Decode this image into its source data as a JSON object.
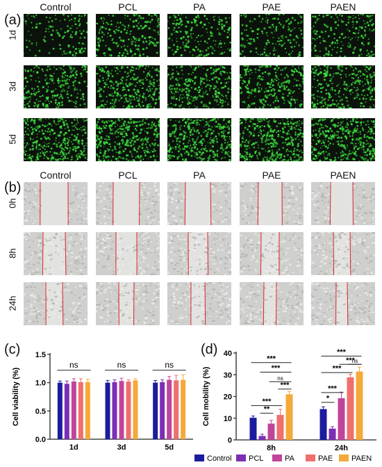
{
  "panel_a": {
    "letter": "(a)",
    "columns": [
      "Control",
      "PCL",
      "PA",
      "PAE",
      "PAEN"
    ],
    "rows": [
      "1d",
      "3d",
      "5d"
    ],
    "density": [
      [
        0.35,
        0.55,
        0.5,
        0.45,
        0.5
      ],
      [
        0.65,
        0.8,
        0.75,
        0.7,
        0.75
      ],
      [
        0.9,
        0.95,
        0.95,
        0.95,
        0.95
      ]
    ]
  },
  "panel_b": {
    "letter": "(b)",
    "columns": [
      "Control",
      "PCL",
      "PA",
      "PAE",
      "PAEN"
    ],
    "rows": [
      "0h",
      "8h",
      "24h"
    ]
  },
  "panel_c": {
    "letter": "(c)"
  },
  "panel_d": {
    "letter": "(d)"
  },
  "legend": [
    "Control",
    "PCL",
    "PA",
    "PAE",
    "PAEN"
  ],
  "colors": {
    "Control": "#1c1c9e",
    "PCL": "#7b2fb5",
    "PA": "#c0449a",
    "PAE": "#ef6f6c",
    "PAEN": "#f5a93a",
    "green": "#3ddc3d",
    "scratch": "#d9262c"
  },
  "chart_data": [
    {
      "type": "bar",
      "ylabel": "Cell viability (%)",
      "ylim": [
        0,
        1.5
      ],
      "yticks": [
        "0.0",
        "0.5",
        "1.0",
        "1.5"
      ],
      "categories": [
        "1d",
        "3d",
        "5d"
      ],
      "series": [
        {
          "name": "Control",
          "values": [
            1.0,
            1.0,
            1.0
          ],
          "err": [
            0.03,
            0.04,
            0.04
          ]
        },
        {
          "name": "PCL",
          "values": [
            0.98,
            1.01,
            1.01
          ],
          "err": [
            0.05,
            0.04,
            0.04
          ]
        },
        {
          "name": "PA",
          "values": [
            1.02,
            1.03,
            1.05
          ],
          "err": [
            0.05,
            0.05,
            0.06
          ]
        },
        {
          "name": "PAE",
          "values": [
            1.01,
            1.02,
            1.04
          ],
          "err": [
            0.06,
            0.03,
            0.09
          ]
        },
        {
          "name": "PAEN",
          "values": [
            1.01,
            1.04,
            1.05
          ],
          "err": [
            0.05,
            0.03,
            0.09
          ]
        }
      ],
      "annotations": [
        "ns",
        "ns",
        "ns"
      ]
    },
    {
      "type": "bar",
      "ylabel": "Cell mobility (%)",
      "ylim": [
        0,
        40
      ],
      "yticks": [
        "0",
        "10",
        "20",
        "30",
        "40"
      ],
      "categories": [
        "8h",
        "24h"
      ],
      "series": [
        {
          "name": "Control",
          "values": [
            10.2,
            14.2
          ],
          "err": [
            0.8,
            1.0
          ]
        },
        {
          "name": "PCL",
          "values": [
            1.8,
            5.2
          ],
          "err": [
            0.8,
            0.9
          ]
        },
        {
          "name": "PA",
          "values": [
            7.5,
            19.2
          ],
          "err": [
            1.5,
            2.8
          ]
        },
        {
          "name": "PAE",
          "values": [
            11.5,
            28.8
          ],
          "err": [
            2.6,
            1.4
          ]
        },
        {
          "name": "PAEN",
          "values": [
            21.0,
            31.5
          ],
          "err": [
            1.3,
            2.0
          ]
        }
      ],
      "significance": [
        {
          "group": 0,
          "from": 1,
          "to": 2,
          "label": "**",
          "y": 12.3
        },
        {
          "group": 0,
          "from": 0,
          "to": 3,
          "label": "***",
          "y": 15.8
        },
        {
          "group": 0,
          "from": 3,
          "to": 4,
          "label": "***",
          "y": 23.4
        },
        {
          "group": 0,
          "from": 2,
          "to": 4,
          "label": "ns",
          "y": 26.8
        },
        {
          "group": 0,
          "from": 1,
          "to": 4,
          "label": "***",
          "y": 31.2
        },
        {
          "group": 0,
          "from": 0,
          "to": 4,
          "label": "***",
          "y": 35.6
        },
        {
          "group": 1,
          "from": 0,
          "to": 1,
          "label": "*",
          "y": 17.3
        },
        {
          "group": 1,
          "from": 0,
          "to": 2,
          "label": "***",
          "y": 21.8
        },
        {
          "group": 1,
          "from": 0,
          "to": 3,
          "label": "***",
          "y": 31.0
        },
        {
          "group": 1,
          "from": 3,
          "to": 4,
          "label": "ns",
          "y": 34.8
        },
        {
          "group": 1,
          "from": 2,
          "to": 4,
          "label": "***",
          "y": 34.8
        },
        {
          "group": 1,
          "from": 0,
          "to": 4,
          "label": "***",
          "y": 38.6
        }
      ]
    }
  ]
}
